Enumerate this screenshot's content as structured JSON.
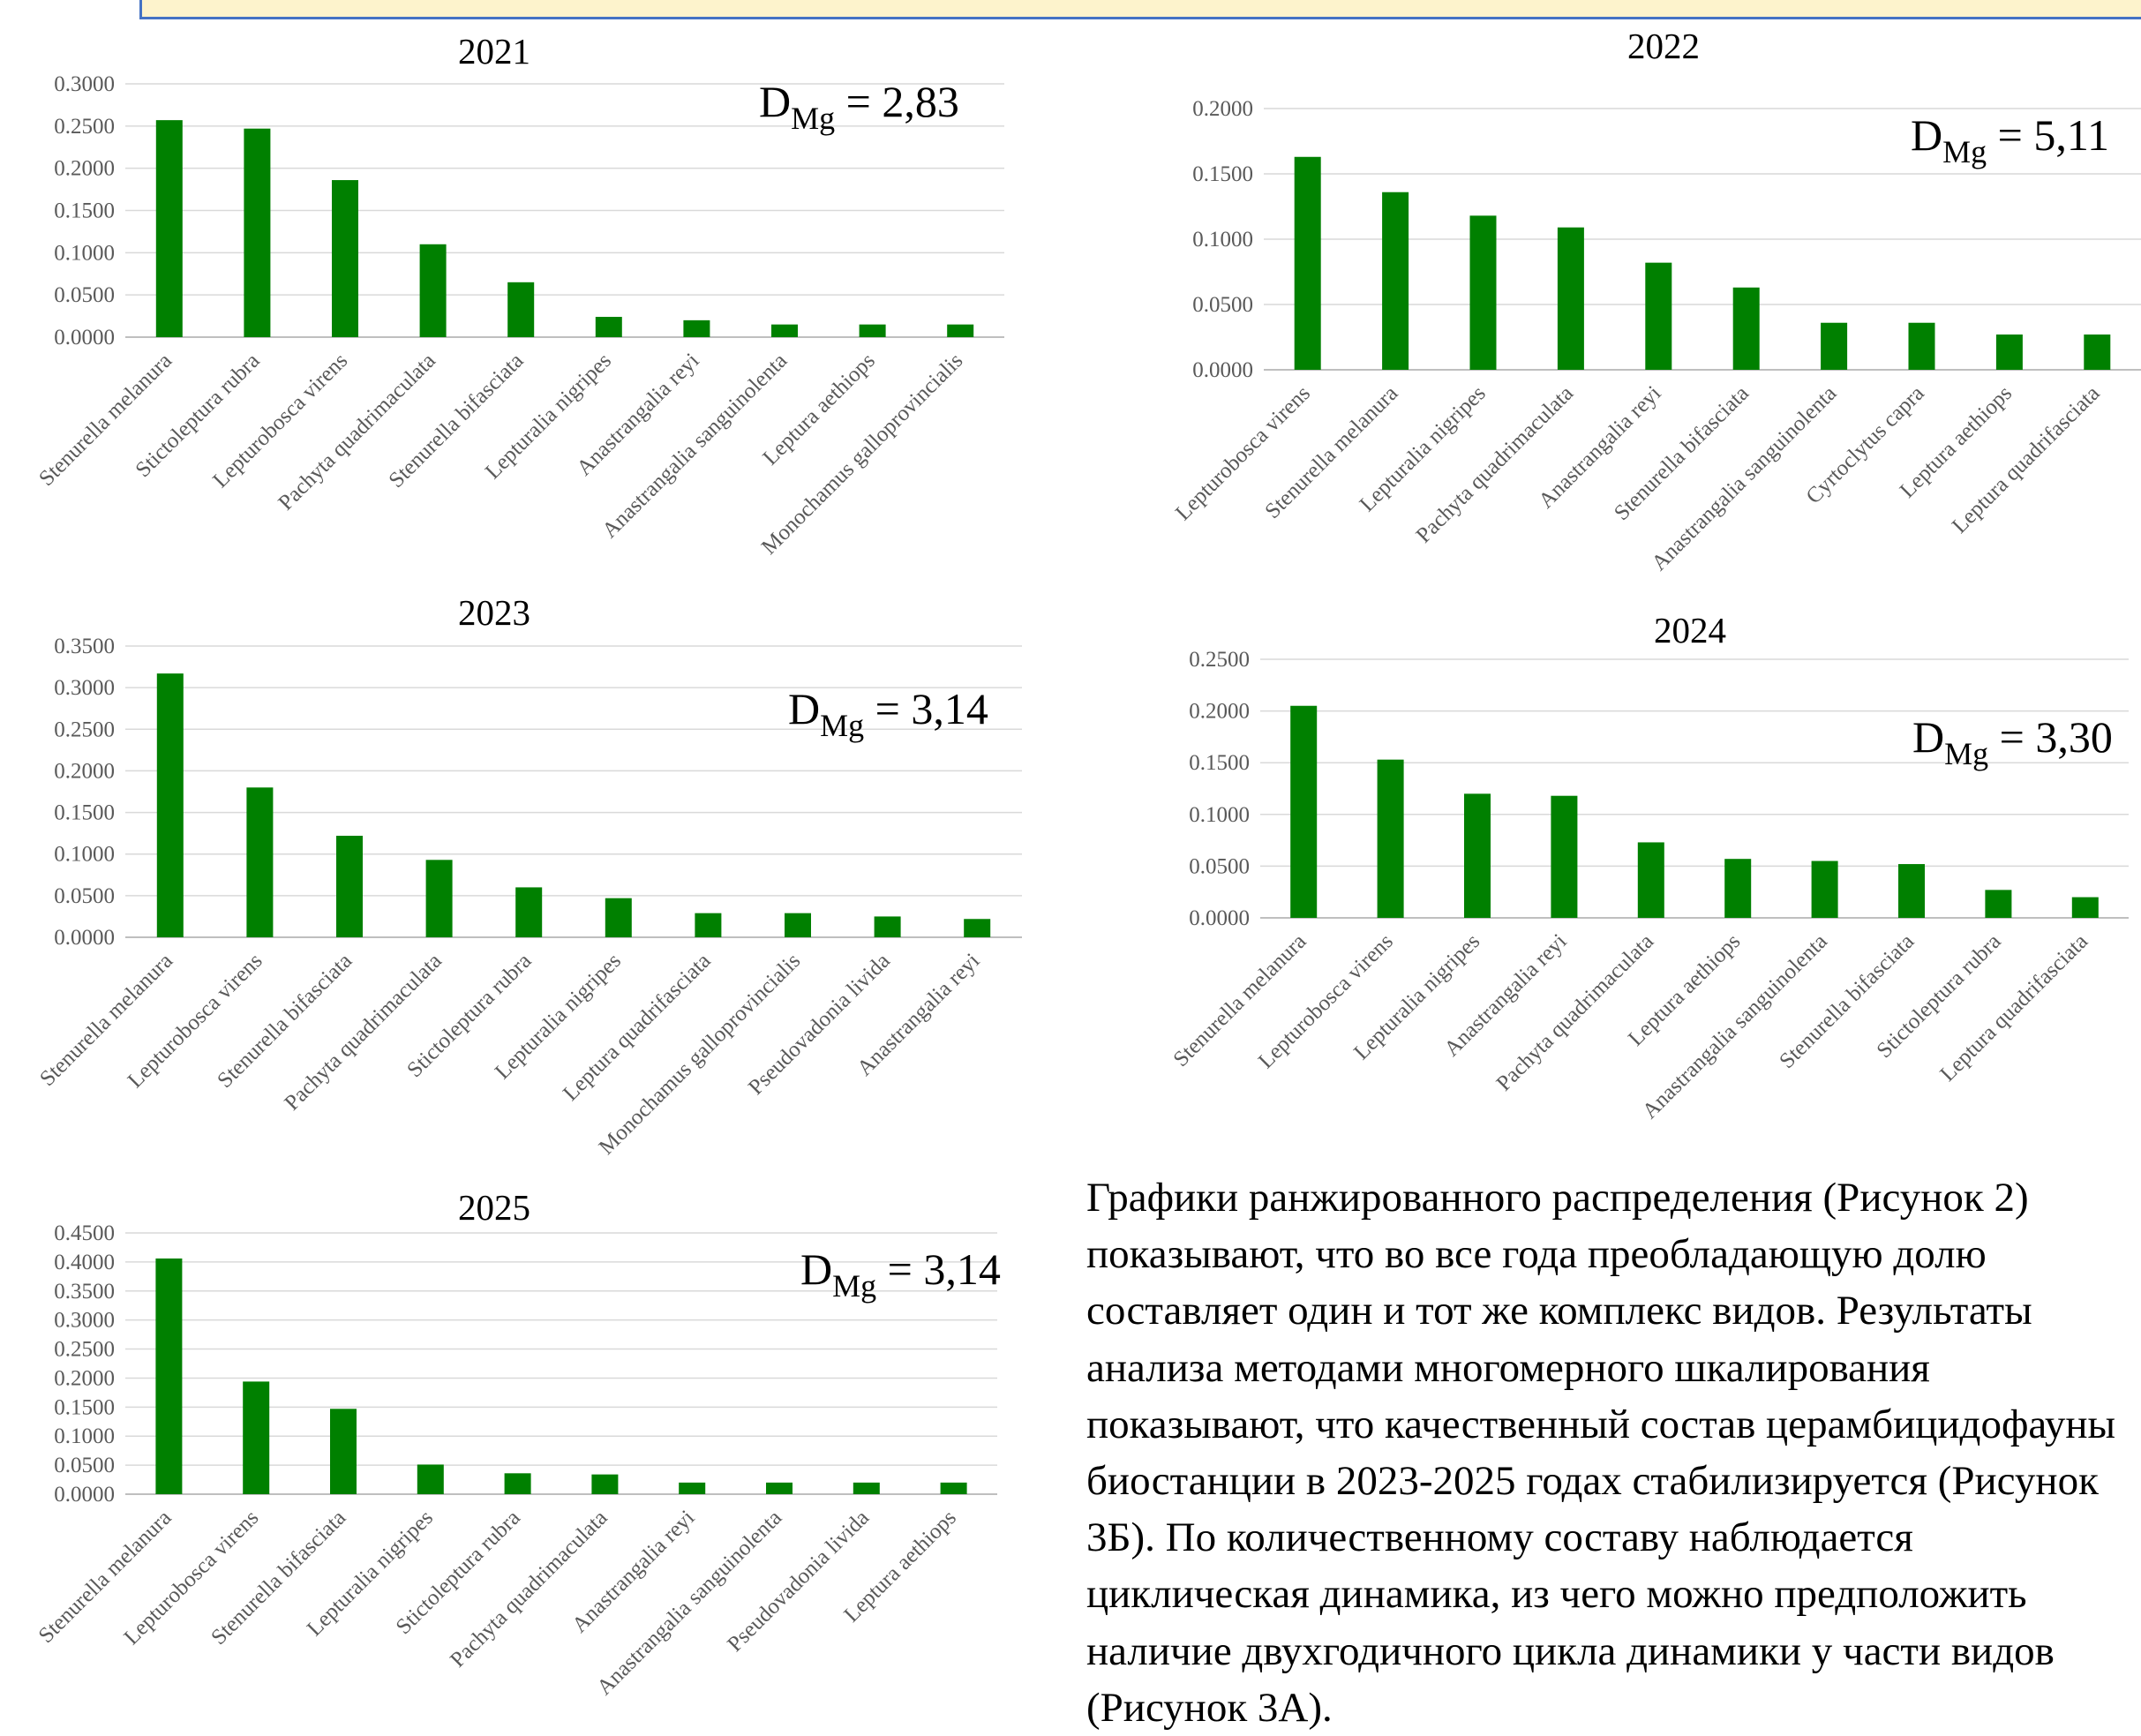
{
  "colors": {
    "bar": "#008000",
    "grid": "#d9d9d9",
    "header_fill": "#fdf3cc",
    "header_border": "#4472c4"
  },
  "chart_data": [
    {
      "type": "bar",
      "title": "2021",
      "annotation": {
        "base": "D",
        "sub": "Mg",
        "value": " = 2,83"
      },
      "ylim": [
        0,
        0.3
      ],
      "yticks": [
        "0.0000",
        "0.0500",
        "0.1000",
        "0.1500",
        "0.2000",
        "0.2500",
        "0.3000"
      ],
      "grid": true,
      "categories": [
        "Stenurella melanura",
        "Stictoleptura rubra",
        "Lepturobosca virens",
        "Pachyta quadrimaculata",
        "Stenurella bifasciata",
        "Lepturalia nigripes",
        "Anastrangalia reyi",
        "Anastrangalia sanguinolenta",
        "Leptura aethiops",
        "Monochamus galloprovincialis"
      ],
      "values": [
        0.257,
        0.247,
        0.186,
        0.11,
        0.065,
        0.024,
        0.02,
        0.015,
        0.015,
        0.015
      ]
    },
    {
      "type": "bar",
      "title": "2022",
      "annotation": {
        "base": "D",
        "sub": "Mg",
        "value": " = 5,11"
      },
      "ylim": [
        0,
        0.2
      ],
      "yticks": [
        "0.0000",
        "0.0500",
        "0.1000",
        "0.1500",
        "0.2000"
      ],
      "grid": true,
      "categories": [
        "Lepturobosca virens",
        "Stenurella melanura",
        "Lepturalia nigripes",
        "Pachyta quadrimaculata",
        "Anastrangalia reyi",
        "Stenurella bifasciata",
        "Anastrangalia sanguinolenta",
        "Cyrtoclytus capra",
        "Leptura aethiops",
        "Leptura quadrifasciata"
      ],
      "values": [
        0.163,
        0.136,
        0.118,
        0.109,
        0.082,
        0.063,
        0.036,
        0.036,
        0.027,
        0.027
      ]
    },
    {
      "type": "bar",
      "title": "2023",
      "annotation": {
        "base": "D",
        "sub": "Mg",
        "value": " = 3,14"
      },
      "ylim": [
        0,
        0.35
      ],
      "yticks": [
        "0.0000",
        "0.0500",
        "0.1000",
        "0.1500",
        "0.2000",
        "0.2500",
        "0.3000",
        "0.3500"
      ],
      "grid": true,
      "categories": [
        "Stenurella melanura",
        "Lepturobosca virens",
        "Stenurella bifasciata",
        "Pachyta quadrimaculata",
        "Stictoleptura rubra",
        "Lepturalia nigripes",
        "Leptura quadrifasciata",
        "Monochamus galloprovincialis",
        "Pseudovadonia livida",
        "Anastrangalia reyi"
      ],
      "values": [
        0.317,
        0.18,
        0.122,
        0.093,
        0.06,
        0.047,
        0.029,
        0.029,
        0.025,
        0.022
      ]
    },
    {
      "type": "bar",
      "title": "2024",
      "annotation": {
        "base": "D",
        "sub": "Mg",
        "value": " = 3,30"
      },
      "ylim": [
        0,
        0.25
      ],
      "yticks": [
        "0.0000",
        "0.0500",
        "0.1000",
        "0.1500",
        "0.2000",
        "0.2500"
      ],
      "grid": true,
      "categories": [
        "Stenurella melanura",
        "Lepturobosca virens",
        "Lepturalia nigripes",
        "Anastrangalia reyi",
        "Pachyta quadrimaculata",
        "Leptura aethiops",
        "Anastrangalia sanguinolenta",
        "Stenurella bifasciata",
        "Stictoleptura rubra",
        "Leptura quadrifasciata"
      ],
      "values": [
        0.205,
        0.153,
        0.12,
        0.118,
        0.073,
        0.057,
        0.055,
        0.052,
        0.027,
        0.02
      ]
    },
    {
      "type": "bar",
      "title": "2025",
      "annotation": {
        "base": "D",
        "sub": "Mg",
        "value": " = 3,14"
      },
      "ylim": [
        0,
        0.45
      ],
      "yticks": [
        "0.0000",
        "0.0500",
        "0.1000",
        "0.1500",
        "0.2000",
        "0.2500",
        "0.3000",
        "0.3500",
        "0.4000",
        "0.4500"
      ],
      "grid": true,
      "categories": [
        "Stenurella melanura",
        "Lepturobosca virens",
        "Stenurella bifasciata",
        "Lepturalia nigripes",
        "Stictoleptura rubra",
        "Pachyta quadrimaculata",
        "Anastrangalia reyi",
        "Anastrangalia sanguinolenta",
        "Pseudovadonia livida",
        "Leptura aethiops"
      ],
      "values": [
        0.406,
        0.194,
        0.147,
        0.051,
        0.036,
        0.034,
        0.02,
        0.02,
        0.02,
        0.02
      ]
    }
  ],
  "text_block": "Графики ранжированного распределения (Рисунок 2) показывают, что во все года преобладающую долю составляет один и тот же комплекс видов. Результаты анализа методами многомерного шкалирования показывают, что качественный состав церамбицидофауны биостанции в 2023-2025 годах стабилизируется (Рисунок 3Б). По количественному составу наблюдается циклическая динамика, из чего можно предположить наличие двухгодичного цикла динамики у части видов (Рисунок 3А)."
}
